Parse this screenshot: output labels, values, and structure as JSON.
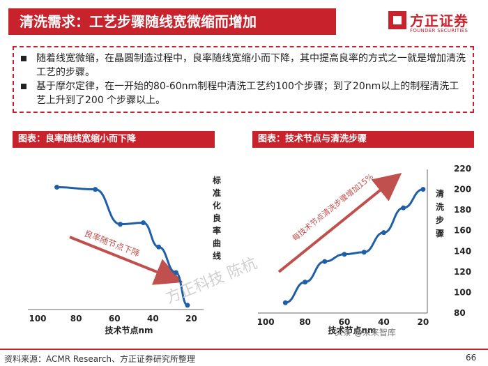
{
  "header": {
    "title": "清洗需求：工艺步骤随线宽微缩而增加",
    "logo_name": "方正证券",
    "logo_sub": "FOUNDER SECURITIES"
  },
  "intro": {
    "bullets": [
      "随着线宽微缩，在晶圆制造过程中，良率随线宽缩小而下降，其中提高良率的方式之一就是增加清洗工艺的步骤。",
      "基于摩尔定律，在一开始的80-60nm制程中清洗工艺约100个步骤；到了20nm以上的制程清洗工艺上升到了200 个步骤以上。"
    ]
  },
  "colors": {
    "brand": "#c8232c",
    "line": "#1f5fa8",
    "arrow": "#c0504d"
  },
  "chart_data": [
    {
      "type": "line",
      "caption": "图表：良率随线宽缩小而下降",
      "xlabel": "技术节点nm",
      "ylabel": "标准化良率曲线",
      "x_ticks": [
        100,
        80,
        60,
        40,
        20
      ],
      "xlim": [
        100,
        10
      ],
      "y_ticks": [],
      "ylim": [
        0,
        1
      ],
      "annotation": "良率随节点下降",
      "series": [
        {
          "x": [
            90,
            70,
            57,
            45,
            37,
            28,
            22
          ],
          "y": [
            0.86,
            0.845,
            0.6,
            0.61,
            0.44,
            0.26,
            0.03
          ]
        }
      ]
    },
    {
      "type": "line",
      "caption": "图表：技术节点与清洗步骤",
      "xlabel": "技术节点nm",
      "ylabel": "清洗步骤",
      "x_ticks": [
        100,
        80,
        60,
        40,
        20
      ],
      "xlim": [
        105,
        15
      ],
      "y_ticks": [
        80,
        100,
        120,
        140,
        160,
        180,
        200,
        220
      ],
      "ylim": [
        80,
        220
      ],
      "annotation": "每技术节点清洗步骤增加15%",
      "series": [
        {
          "x": [
            90,
            80,
            70,
            60,
            50,
            40,
            30,
            20
          ],
          "y": [
            90,
            110,
            130,
            137,
            139,
            158,
            182,
            200
          ]
        }
      ]
    }
  ],
  "footer": {
    "source": "资料来源：ACMR Research、方正证券研究所整理",
    "watermark_main": "方正科技 陈杭",
    "watermark_small": "头条 @未来智库",
    "page": "66"
  }
}
